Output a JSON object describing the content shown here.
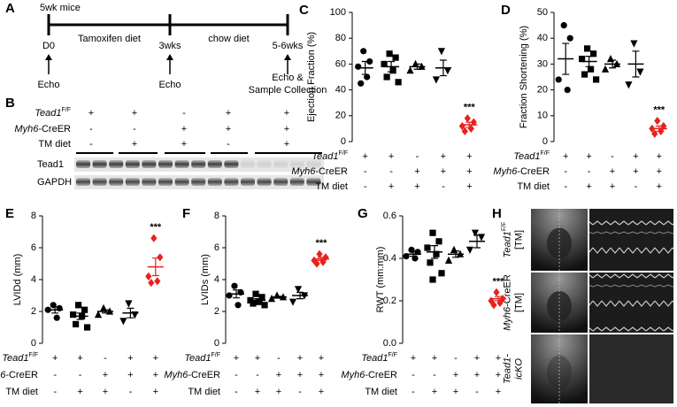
{
  "timeline": {
    "label": "A",
    "start": "5wk mice",
    "phases": [
      "Tamoxifen diet",
      "chow diet"
    ],
    "timepoints": [
      {
        "time": "D0",
        "events": [
          "Echo"
        ]
      },
      {
        "time": "3wks",
        "events": [
          "Echo"
        ]
      },
      {
        "time": "5-6wks",
        "events": [
          "Echo &",
          "Sample Collection"
        ]
      }
    ]
  },
  "genotype": {
    "rows": [
      {
        "italic": "Tead1",
        "sup": "F/F",
        "signs": [
          "+",
          "+",
          "-",
          "+",
          "+"
        ]
      },
      {
        "italic": "Myh6",
        "text": "-CreER",
        "signs": [
          "-",
          "-",
          "+",
          "+",
          "+"
        ]
      },
      {
        "text": "TM diet",
        "signs": [
          "-",
          "+",
          "+",
          "-",
          "+"
        ]
      }
    ]
  },
  "blot": {
    "label": "B",
    "bands": [
      "Tead1",
      "GAPDH"
    ]
  },
  "echo": {
    "label": "H",
    "rows": [
      {
        "lines": [
          {
            "italic": "Tead1",
            "sup": "F/F"
          },
          {
            "text": "[TM]"
          }
        ]
      },
      {
        "lines": [
          {
            "italic": "Myh6",
            "text": "-CreER"
          },
          {
            "text": "[TM]"
          }
        ]
      },
      {
        "lines": [
          {
            "italic": "Tead1-"
          },
          {
            "italic": "icKO"
          }
        ]
      }
    ]
  },
  "chart_data": [
    {
      "type": "dot",
      "label": "C",
      "ylabel": "Ejection Fraction (%)",
      "ylim": [
        0,
        100
      ],
      "yticks": [
        0,
        20,
        40,
        60,
        80,
        100
      ],
      "annotation": "***",
      "groups": [
        {
          "marker": "circle",
          "color": "#000000",
          "points": [
            70,
            62,
            58,
            50,
            45
          ],
          "mean": 57,
          "sem": 5
        },
        {
          "marker": "square",
          "color": "#000000",
          "points": [
            68,
            65,
            60,
            55,
            50,
            46
          ],
          "mean": 58,
          "sem": 4
        },
        {
          "marker": "triangle-up",
          "color": "#000000",
          "points": [
            60,
            58,
            55
          ],
          "mean": 58,
          "sem": 2
        },
        {
          "marker": "triangle-down",
          "color": "#000000",
          "points": [
            70,
            55,
            48
          ],
          "mean": 57,
          "sem": 6
        },
        {
          "marker": "diamond",
          "color": "#e8211d",
          "points": [
            18,
            15,
            12,
            10,
            8
          ],
          "mean": 13,
          "sem": 2
        }
      ]
    },
    {
      "type": "dot",
      "label": "D",
      "ylabel": "Fraction Shortening (%)",
      "ylim": [
        0,
        50
      ],
      "yticks": [
        0,
        10,
        20,
        30,
        40,
        50
      ],
      "annotation": "***",
      "groups": [
        {
          "marker": "circle",
          "color": "#000000",
          "points": [
            45,
            40,
            24,
            20
          ],
          "mean": 32,
          "sem": 6
        },
        {
          "marker": "square",
          "color": "#000000",
          "points": [
            36,
            34,
            32,
            28,
            26,
            24
          ],
          "mean": 31,
          "sem": 2
        },
        {
          "marker": "triangle-up",
          "color": "#000000",
          "points": [
            32,
            30,
            28
          ],
          "mean": 30,
          "sem": 1.5
        },
        {
          "marker": "triangle-down",
          "color": "#000000",
          "points": [
            38,
            27,
            22
          ],
          "mean": 30,
          "sem": 5
        },
        {
          "marker": "diamond",
          "color": "#e8211d",
          "points": [
            8,
            6,
            5,
            4,
            3
          ],
          "mean": 5,
          "sem": 1
        }
      ]
    },
    {
      "type": "dot",
      "label": "E",
      "ylabel": "LVIDd (mm)",
      "ylim": [
        0,
        8
      ],
      "yticks": [
        0,
        2,
        4,
        6,
        8
      ],
      "annotation": "***",
      "groups": [
        {
          "marker": "circle",
          "color": "#000000",
          "points": [
            2.4,
            2.2,
            2.1,
            1.6
          ],
          "mean": 2.1,
          "sem": 0.2
        },
        {
          "marker": "square",
          "color": "#000000",
          "points": [
            2.4,
            2.1,
            1.8,
            1.7,
            1.2,
            1.0
          ],
          "mean": 1.7,
          "sem": 0.2
        },
        {
          "marker": "triangle-up",
          "color": "#000000",
          "points": [
            2.2,
            2.0,
            1.8
          ],
          "mean": 2.0,
          "sem": 0.1
        },
        {
          "marker": "triangle-down",
          "color": "#000000",
          "points": [
            2.5,
            1.8,
            1.4
          ],
          "mean": 1.9,
          "sem": 0.3
        },
        {
          "marker": "diamond",
          "color": "#e8211d",
          "points": [
            6.6,
            5.4,
            4.2,
            3.9,
            3.8
          ],
          "mean": 4.8,
          "sem": 0.55
        }
      ]
    },
    {
      "type": "dot",
      "label": "F",
      "ylabel": "LVIDs (mm)",
      "ylim": [
        0,
        8
      ],
      "yticks": [
        0,
        2,
        4,
        6,
        8
      ],
      "annotation": "***",
      "groups": [
        {
          "marker": "circle",
          "color": "#000000",
          "points": [
            3.6,
            3.2,
            3.0,
            2.4
          ],
          "mean": 3.1,
          "sem": 0.25
        },
        {
          "marker": "square",
          "color": "#000000",
          "points": [
            3.1,
            2.9,
            2.7,
            2.6,
            2.5,
            2.4
          ],
          "mean": 2.7,
          "sem": 0.1
        },
        {
          "marker": "triangle-up",
          "color": "#000000",
          "points": [
            3.0,
            2.9,
            2.8
          ],
          "mean": 2.9,
          "sem": 0.05
        },
        {
          "marker": "triangle-down",
          "color": "#000000",
          "points": [
            3.4,
            3.0,
            2.6
          ],
          "mean": 3.0,
          "sem": 0.2
        },
        {
          "marker": "diamond",
          "color": "#e8211d",
          "points": [
            5.6,
            5.4,
            5.2,
            5.1,
            5.0
          ],
          "mean": 5.3,
          "sem": 0.1
        }
      ]
    },
    {
      "type": "dot",
      "label": "G",
      "ylabel": "RWT (mm:mm)",
      "ylim": [
        0,
        0.6
      ],
      "yticks": [
        {
          "value": 0,
          "label": "0.0"
        },
        0.2,
        0.4,
        0.6
      ],
      "annotation": "***",
      "groups": [
        {
          "marker": "circle",
          "color": "#000000",
          "points": [
            0.44,
            0.43,
            0.41,
            0.4
          ],
          "mean": 0.42,
          "sem": 0.01
        },
        {
          "marker": "square",
          "color": "#000000",
          "points": [
            0.52,
            0.48,
            0.45,
            0.42,
            0.38,
            0.33,
            0.3
          ],
          "mean": 0.43,
          "sem": 0.03
        },
        {
          "marker": "triangle-up",
          "color": "#000000",
          "points": [
            0.44,
            0.42,
            0.39
          ],
          "mean": 0.42,
          "sem": 0.015
        },
        {
          "marker": "triangle-down",
          "color": "#000000",
          "points": [
            0.52,
            0.5,
            0.44
          ],
          "mean": 0.48,
          "sem": 0.03
        },
        {
          "marker": "diamond",
          "color": "#e8211d",
          "points": [
            0.24,
            0.21,
            0.2,
            0.19,
            0.18
          ],
          "mean": 0.21,
          "sem": 0.01
        }
      ]
    }
  ]
}
